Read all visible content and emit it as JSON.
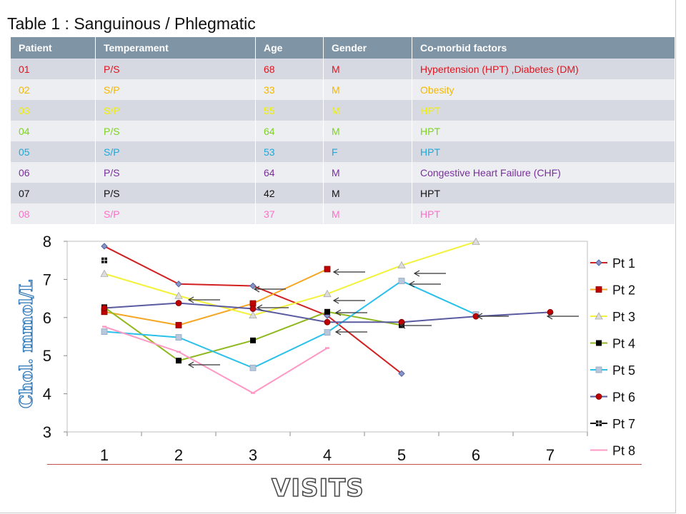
{
  "title": "Table 1 : Sanguinous / Phlegmatic",
  "table": {
    "headers": [
      "Patient",
      "Temperament",
      "Age",
      "Gender",
      "Co-morbid factors"
    ],
    "rows": [
      {
        "cells": [
          "01",
          "P/S",
          "68",
          "M",
          "Hypertension (HPT) ,Diabetes (DM)"
        ],
        "color": "#e0141e"
      },
      {
        "cells": [
          "02",
          "S/P",
          "33",
          "M",
          "Obesity"
        ],
        "color": "#f5b800"
      },
      {
        "cells": [
          "03",
          "S/P",
          "55",
          "M",
          "HPT"
        ],
        "color": "#f0f000"
      },
      {
        "cells": [
          "04",
          "P/S",
          "64",
          "M",
          "HPT"
        ],
        "color": "#7ed321"
      },
      {
        "cells": [
          "05",
          "S/P",
          "53",
          "F",
          "HPT"
        ],
        "color": "#1fa8d8"
      },
      {
        "cells": [
          "06",
          "P/S",
          "64",
          "M",
          "Congestive Heart Failure  (CHF)"
        ],
        "color": "#7a2f9e"
      },
      {
        "cells": [
          "07",
          "P/S",
          "42",
          "M",
          "HPT"
        ],
        "color": "#111111"
      },
      {
        "cells": [
          "08",
          "S/P",
          "37",
          "M",
          "HPT"
        ],
        "color": "#ff6fc8"
      }
    ]
  },
  "chart_data": {
    "type": "line",
    "xlabel": "VISITS",
    "ylabel": "Chol. mmol/L",
    "x": [
      1,
      2,
      3,
      4,
      5,
      6,
      7
    ],
    "ylim": [
      3,
      8
    ],
    "yticks": [
      3,
      4,
      5,
      6,
      7,
      8
    ],
    "legend": "right",
    "series": [
      {
        "name": "Pt 1",
        "color": "#4f5fa0",
        "marker": "diamond",
        "values": [
          7.87,
          6.88,
          6.83,
          6.05,
          4.53,
          null,
          null
        ]
      },
      {
        "name": "Pt 2",
        "color": "#f5a623",
        "marker": "square-red",
        "values": [
          6.15,
          5.8,
          6.37,
          7.27,
          null,
          null,
          null
        ]
      },
      {
        "name": "Pt 3",
        "color": "#f2f23a",
        "marker": "triangle",
        "values": [
          7.15,
          6.57,
          6.06,
          6.62,
          7.37,
          7.99,
          null
        ]
      },
      {
        "name": "Pt 4",
        "color": "#8fb81e",
        "marker": "square-black",
        "values": [
          6.27,
          4.87,
          5.4,
          6.15,
          5.8,
          null,
          null
        ]
      },
      {
        "name": "Pt 5",
        "color": "#2bc0ea",
        "marker": "square-light",
        "values": [
          5.63,
          5.48,
          4.68,
          5.61,
          6.96,
          6.08,
          null
        ]
      },
      {
        "name": "Pt 6",
        "color": "#5a5aa0",
        "marker": "circle-red",
        "values": [
          6.25,
          6.38,
          6.23,
          5.88,
          5.88,
          6.03,
          6.14
        ]
      },
      {
        "name": "Pt 7",
        "color": "#000000",
        "marker": "cross-square",
        "values": [
          7.5,
          null,
          null,
          null,
          null,
          null,
          null
        ]
      },
      {
        "name": "Pt 8",
        "color": "#ff99c4",
        "marker": "dash",
        "values": [
          5.76,
          5.1,
          4.02,
          5.2,
          null,
          null,
          null
        ]
      }
    ]
  }
}
